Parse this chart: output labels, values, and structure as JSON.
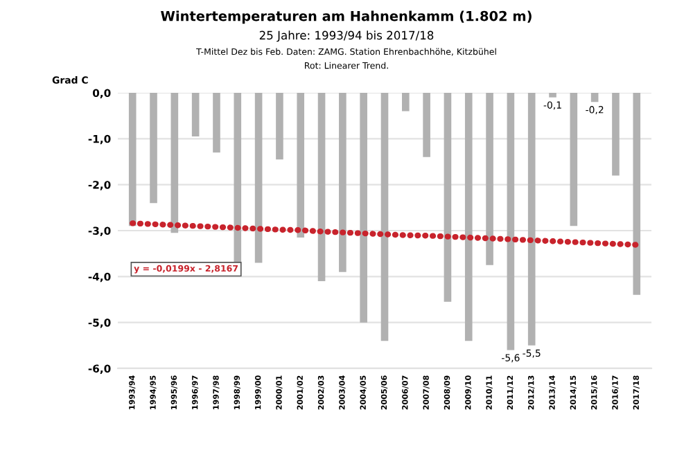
{
  "chart_data": {
    "type": "bar",
    "title": "Wintertemperaturen am Hahnenkamm (1.802 m)",
    "subtitle": "25 Jahre: 1993/94 bis 2017/18",
    "ylabel": "Grad C",
    "categories": [
      "1993/94",
      "1994/95",
      "1995/96",
      "1996/97",
      "1997/98",
      "1998/99",
      "1999/00",
      "2000/01",
      "2001/02",
      "2002/03",
      "2003/04",
      "2004/05",
      "2005/06",
      "2006/07",
      "2007/08",
      "2008/09",
      "2009/10",
      "2010/11",
      "2011/12",
      "2012/13",
      "2013/14",
      "2014/15",
      "2015/16",
      "2016/17",
      "2017/18"
    ],
    "series": [
      {
        "color": "#b1b1b1",
        "values": [
          -2.9,
          -2.4,
          -3.05,
          -0.95,
          -1.3,
          -3.7,
          -3.7,
          -1.45,
          -3.15,
          -4.1,
          -3.9,
          -5.0,
          -5.4,
          -0.4,
          -1.4,
          -4.55,
          -5.4,
          -3.75,
          -5.6,
          -5.5,
          -0.1,
          -2.9,
          -0.2,
          -1.8,
          -4.4
        ],
        "value_labels": [
          null,
          null,
          null,
          null,
          null,
          null,
          null,
          null,
          null,
          null,
          null,
          null,
          null,
          null,
          null,
          null,
          null,
          null,
          "-5,6",
          "-5,5",
          "-0,1",
          null,
          "-0,2",
          null,
          null
        ]
      },
      {
        "type": "line",
        "color": "#c8232c",
        "line_style": "dotted",
        "values": [
          -2.84,
          -2.86,
          -2.88,
          -2.9,
          -2.92,
          -2.94,
          -2.96,
          -2.98,
          -2.99,
          -3.02,
          -3.04,
          -3.06,
          -3.08,
          -3.1,
          -3.11,
          -3.13,
          -3.15,
          -3.17,
          -3.19,
          -3.21,
          -3.23,
          -3.25,
          -3.27,
          -3.29,
          -3.31
        ]
      }
    ],
    "ylim": [
      -6,
      0
    ],
    "yticks": [
      {
        "value": -6,
        "label": "-6,0"
      },
      {
        "value": -5,
        "label": "-5,0"
      },
      {
        "value": -4,
        "label": "-4,0"
      },
      {
        "value": -3,
        "label": "-3,0"
      },
      {
        "value": -2,
        "label": "-2,0"
      },
      {
        "value": -1,
        "label": "-1,0"
      },
      {
        "value": 0,
        "label": "0,0"
      }
    ],
    "grid": "y",
    "legend": false,
    "annotations": [
      "T-Mittel Dez bis Feb. Daten: ZAMG. Station Ehrenbachhöhe, Kitzbühel",
      "Rot: Linearer Trend.",
      "y = -0,0199x - 2,8167"
    ]
  }
}
